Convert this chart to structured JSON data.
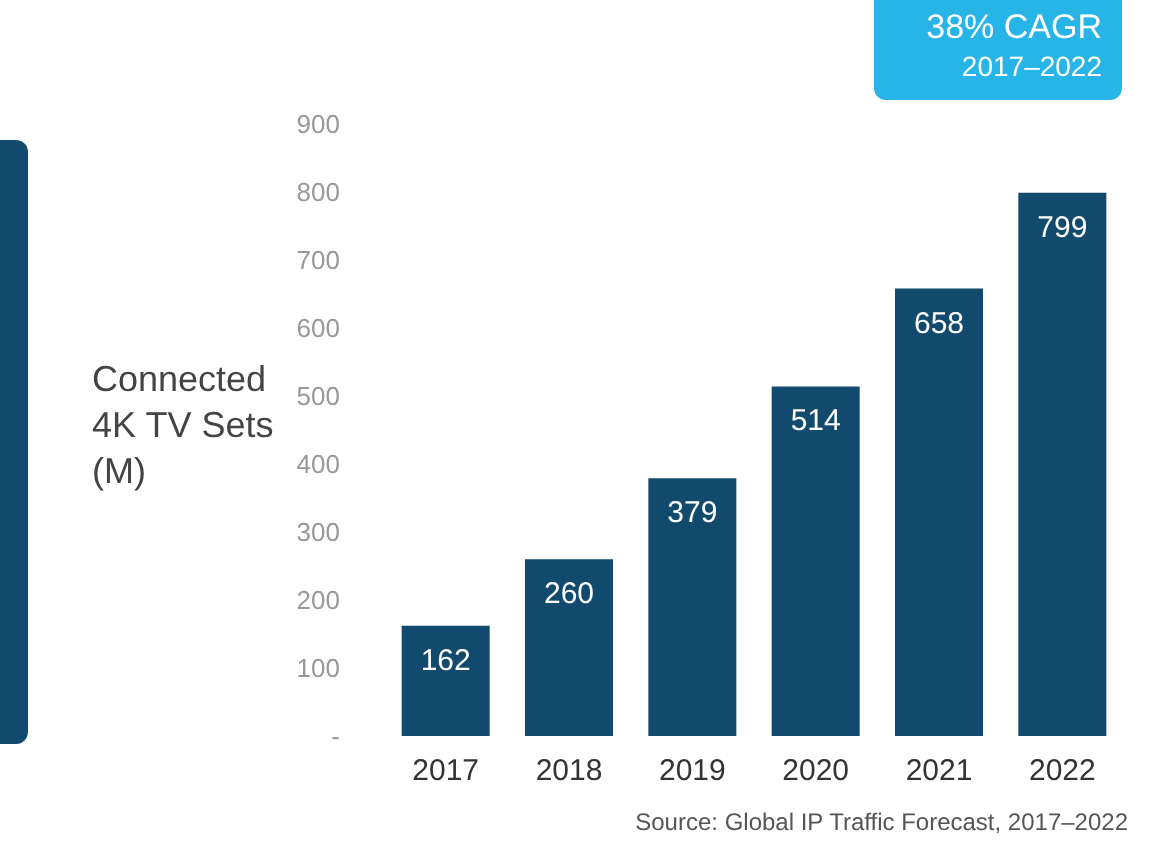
{
  "chart_data": {
    "type": "bar",
    "ylabel": "Connected\n4K TV Sets\n(M)",
    "categories": [
      "2017",
      "2018",
      "2019",
      "2020",
      "2021",
      "2022"
    ],
    "values": [
      162,
      260,
      379,
      514,
      658,
      799
    ],
    "color": "#124a6d",
    "ylim": [
      0,
      900
    ],
    "yticks": [
      {
        "value": 0,
        "label": "-"
      },
      100,
      200,
      300,
      400,
      500,
      600,
      700,
      800,
      900
    ],
    "grid": false,
    "data_labels": true,
    "annotations": [
      "38% CAGR",
      "2017–2022",
      "Source: Global IP Traffic Forecast, 2017–2022"
    ]
  }
}
